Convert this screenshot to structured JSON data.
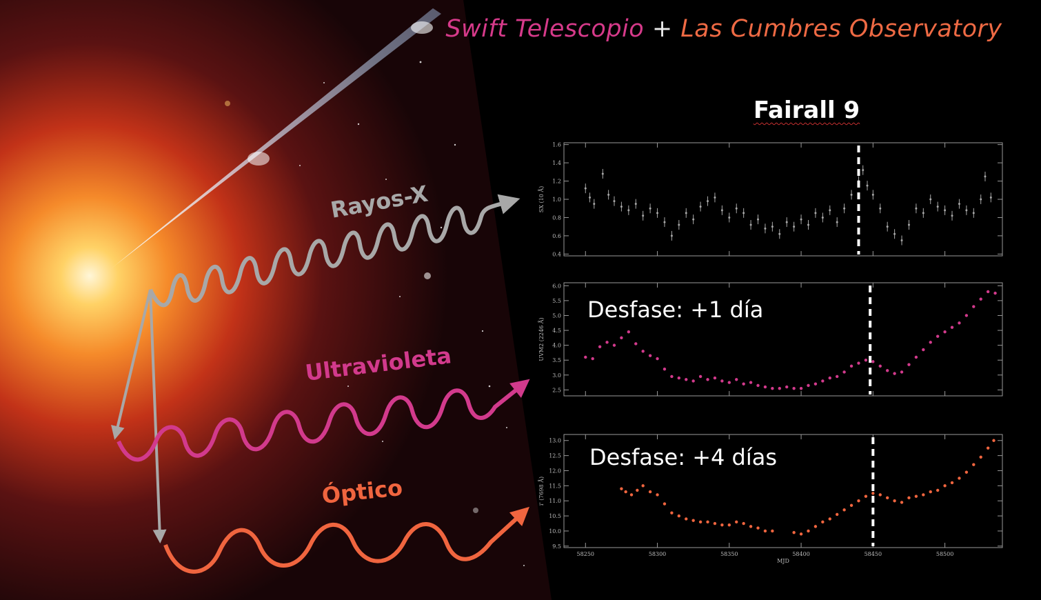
{
  "header": {
    "title_part1": "Swift Telescopio",
    "title_plus": "+",
    "title_part2": "Las Cumbres Observatory",
    "object_name": "Fairall 9"
  },
  "bands": {
    "xray": "Rayos-X",
    "uv": "Ultravioleta",
    "optical": "Óptico"
  },
  "lags": {
    "uv": "Desfase: +1 día",
    "optical": "Desfase: +4 días"
  },
  "colors": {
    "xray": "#a8a8a8",
    "uv": "#d23a8c",
    "optical": "#f0653f",
    "swift": "#d63a8a",
    "lco": "#ef6a44"
  },
  "chart_data": [
    {
      "type": "scatter",
      "ylabel": "SX (10 Å)",
      "xlim": [
        58235,
        58540
      ],
      "ylim": [
        0.38,
        1.62
      ],
      "yticks": [
        "0.4",
        "0.6",
        "0.8",
        "1.0",
        "1.2",
        "1.4",
        "1.6"
      ],
      "marker_x": 58440,
      "series": [
        {
          "color": "#a8a8a8",
          "x": [
            58250,
            58253,
            58256,
            58262,
            58266,
            58270,
            58275,
            58280,
            58285,
            58290,
            58295,
            58300,
            58305,
            58310,
            58315,
            58320,
            58325,
            58330,
            58335,
            58340,
            58345,
            58350,
            58355,
            58360,
            58365,
            58370,
            58375,
            58380,
            58385,
            58390,
            58395,
            58400,
            58405,
            58410,
            58415,
            58420,
            58425,
            58430,
            58435,
            58440,
            58443,
            58446,
            58450,
            58455,
            58460,
            58465,
            58470,
            58475,
            58480,
            58485,
            58490,
            58495,
            58500,
            58505,
            58510,
            58515,
            58520,
            58525,
            58528,
            58532
          ],
          "y": [
            1.12,
            1.02,
            0.95,
            1.28,
            1.05,
            0.98,
            0.92,
            0.88,
            0.95,
            0.82,
            0.9,
            0.85,
            0.75,
            0.6,
            0.72,
            0.85,
            0.78,
            0.92,
            0.98,
            1.02,
            0.88,
            0.8,
            0.9,
            0.85,
            0.72,
            0.78,
            0.68,
            0.7,
            0.62,
            0.75,
            0.7,
            0.78,
            0.72,
            0.85,
            0.8,
            0.88,
            0.75,
            0.9,
            1.05,
            1.2,
            1.32,
            1.15,
            1.05,
            0.9,
            0.7,
            0.62,
            0.55,
            0.72,
            0.9,
            0.85,
            1.0,
            0.92,
            0.88,
            0.82,
            0.95,
            0.88,
            0.85,
            1.0,
            1.25,
            1.02
          ]
        }
      ]
    },
    {
      "type": "scatter",
      "ylabel": "UVM2 (2246 Å)",
      "xlim": [
        58235,
        58540
      ],
      "ylim": [
        2.3,
        6.1
      ],
      "yticks": [
        "2.5",
        "3.0",
        "3.5",
        "4.0",
        "4.5",
        "5.0",
        "5.5",
        "6.0"
      ],
      "marker_x": 58448,
      "series": [
        {
          "color": "#d23a8c",
          "x": [
            58250,
            58255,
            58260,
            58265,
            58270,
            58275,
            58280,
            58285,
            58290,
            58295,
            58300,
            58305,
            58310,
            58315,
            58320,
            58325,
            58330,
            58335,
            58340,
            58345,
            58350,
            58355,
            58360,
            58365,
            58370,
            58375,
            58380,
            58385,
            58390,
            58395,
            58400,
            58405,
            58410,
            58415,
            58420,
            58425,
            58430,
            58435,
            58440,
            58445,
            58450,
            58455,
            58460,
            58465,
            58470,
            58475,
            58480,
            58485,
            58490,
            58495,
            58500,
            58505,
            58510,
            58515,
            58520,
            58525,
            58530,
            58535
          ],
          "y": [
            3.6,
            3.55,
            3.95,
            4.1,
            4.0,
            4.25,
            4.45,
            4.05,
            3.8,
            3.65,
            3.55,
            3.2,
            2.95,
            2.9,
            2.85,
            2.8,
            2.95,
            2.85,
            2.9,
            2.8,
            2.75,
            2.85,
            2.7,
            2.75,
            2.65,
            2.6,
            2.55,
            2.55,
            2.6,
            2.55,
            2.55,
            2.65,
            2.7,
            2.8,
            2.9,
            2.95,
            3.1,
            3.3,
            3.4,
            3.5,
            3.45,
            3.3,
            3.15,
            3.05,
            3.1,
            3.35,
            3.6,
            3.85,
            4.1,
            4.3,
            4.45,
            4.6,
            4.75,
            5.0,
            5.3,
            5.55,
            5.8,
            5.75
          ]
        }
      ]
    },
    {
      "type": "scatter",
      "xlabel": "MJD",
      "ylabel": "i' (7698 Å)",
      "xlim": [
        58235,
        58540
      ],
      "ylim": [
        9.45,
        13.2
      ],
      "xticks": [
        58250,
        58300,
        58350,
        58400,
        58450,
        58500
      ],
      "yticks": [
        "9.5",
        "10.0",
        "10.5",
        "11.0",
        "11.5",
        "12.0",
        "12.5",
        "13.0"
      ],
      "marker_x": 58450,
      "series": [
        {
          "color": "#f0653f",
          "x": [
            58275,
            58278,
            58282,
            58286,
            58290,
            58295,
            58300,
            58305,
            58310,
            58315,
            58320,
            58325,
            58330,
            58335,
            58340,
            58345,
            58350,
            58355,
            58360,
            58365,
            58370,
            58375,
            58380,
            58395,
            58400,
            58405,
            58410,
            58415,
            58420,
            58425,
            58430,
            58435,
            58440,
            58445,
            58450,
            58455,
            58460,
            58465,
            58470,
            58475,
            58480,
            58485,
            58490,
            58495,
            58500,
            58505,
            58510,
            58515,
            58520,
            58525,
            58530,
            58534
          ],
          "y": [
            11.4,
            11.3,
            11.2,
            11.35,
            11.5,
            11.3,
            11.2,
            10.9,
            10.6,
            10.5,
            10.4,
            10.35,
            10.3,
            10.3,
            10.25,
            10.2,
            10.2,
            10.3,
            10.25,
            10.15,
            10.1,
            10.0,
            10.0,
            9.95,
            9.9,
            10.0,
            10.15,
            10.3,
            10.4,
            10.55,
            10.7,
            10.85,
            11.0,
            11.15,
            11.25,
            11.2,
            11.1,
            11.0,
            10.95,
            11.1,
            11.15,
            11.2,
            11.3,
            11.35,
            11.5,
            11.6,
            11.75,
            11.95,
            12.2,
            12.45,
            12.75,
            13.0
          ]
        }
      ]
    }
  ]
}
